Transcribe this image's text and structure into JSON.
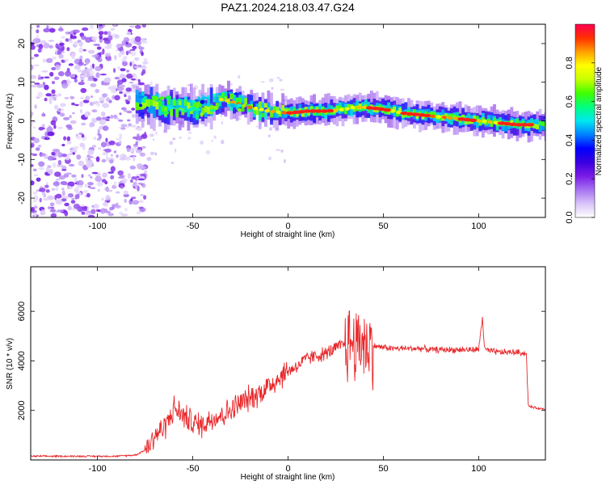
{
  "figure_title": "PAZ1.2024.218.03.47.G24",
  "chart_data": [
    {
      "type": "heatmap",
      "xlabel": "Height of straight line (km)",
      "ylabel": "Frequency (Hz)",
      "xlim": [
        -135,
        135
      ],
      "ylim": [
        -25,
        25
      ],
      "xticks": [
        -100,
        -50,
        0,
        50,
        100
      ],
      "yticks": [
        -20,
        -10,
        0,
        10,
        20
      ],
      "colorbar": {
        "label": "Normalized spectral amplitude",
        "range": [
          0,
          1
        ],
        "ticks": [
          "0.0",
          "0.2",
          "0.4",
          "0.6",
          "0.8"
        ],
        "tick_values": [
          0,
          0.2,
          0.4,
          0.6,
          0.8
        ],
        "colormap": [
          "#ffffff",
          "#d8c4f8",
          "#a673f2",
          "#7a1be6",
          "#3a00e0",
          "#0000ff",
          "#0080ff",
          "#00e8f0",
          "#00ff80",
          "#40ff00",
          "#c8ff00",
          "#ffff00",
          "#ffa000",
          "#ff3000",
          "#ff0050"
        ]
      },
      "ridge": {
        "x": [
          -80,
          -70,
          -60,
          -50,
          -40,
          -35,
          -30,
          -20,
          -10,
          0,
          10,
          20,
          30,
          35,
          40,
          50,
          60,
          70,
          80,
          90,
          100,
          110,
          120,
          135
        ],
        "frequency_hz": [
          4.5,
          4,
          3.5,
          3,
          4.5,
          5.5,
          5,
          3.5,
          2.5,
          2,
          2.5,
          2.5,
          3,
          3.5,
          3.5,
          3,
          2,
          1.5,
          1,
          0.5,
          0,
          -0.5,
          -1,
          -1
        ]
      },
      "noise_region_x": [
        -135,
        -78
      ]
    },
    {
      "type": "line",
      "xlabel": "Height of straight line (km)",
      "ylabel": "SNR (10 * v/v)",
      "xlim": [
        -135,
        135
      ],
      "ylim": [
        0,
        7800
      ],
      "xticks": [
        -100,
        -50,
        0,
        50,
        100
      ],
      "yticks": [
        2000,
        4000,
        6000
      ],
      "series": [
        {
          "color": "#e8282b",
          "x": [
            -135,
            -110,
            -90,
            -80,
            -75,
            -72,
            -70,
            -65,
            -62,
            -60,
            -55,
            -50,
            -45,
            -40,
            -35,
            -30,
            -25,
            -20,
            -15,
            -10,
            -5,
            0,
            5,
            10,
            15,
            20,
            25,
            30,
            33,
            35,
            37,
            38,
            40,
            42,
            45,
            50,
            55,
            60,
            65,
            70,
            75,
            80,
            85,
            90,
            95,
            100,
            102,
            103,
            105,
            110,
            115,
            120,
            125,
            126,
            127,
            130,
            135
          ],
          "y": [
            150,
            150,
            150,
            200,
            400,
            700,
            1000,
            1300,
            1700,
            2100,
            1800,
            1500,
            1400,
            1700,
            1800,
            2000,
            2300,
            2500,
            2700,
            3000,
            3300,
            3600,
            3800,
            4100,
            4200,
            4300,
            4500,
            4700,
            4800,
            4700,
            4600,
            5000,
            4700,
            4600,
            4600,
            4550,
            4500,
            4500,
            4500,
            4500,
            4450,
            4450,
            4450,
            4450,
            4450,
            4450,
            5800,
            4500,
            4400,
            4350,
            4350,
            4350,
            4300,
            2200,
            2150,
            2100,
            2050
          ]
        }
      ]
    }
  ]
}
